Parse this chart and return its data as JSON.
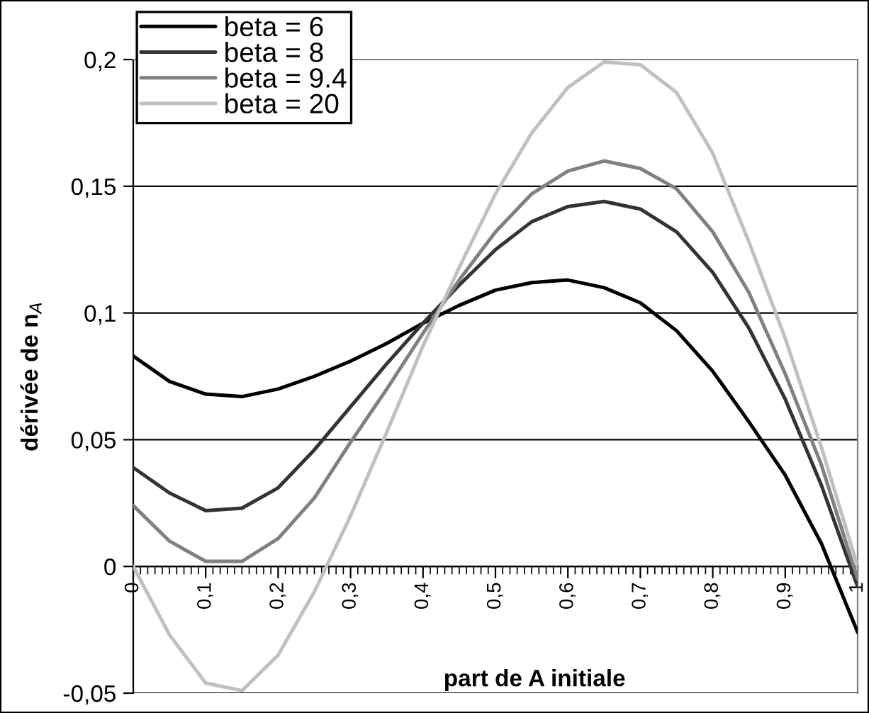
{
  "chart_data": {
    "type": "line",
    "xlabel": "part de A initiale",
    "ylabel": "dérivée de n$_{A}$",
    "x": [
      0,
      0.05,
      0.1,
      0.15,
      0.2,
      0.25,
      0.3,
      0.35,
      0.4,
      0.45,
      0.5,
      0.55,
      0.6,
      0.65,
      0.7,
      0.75,
      0.8,
      0.85,
      0.9,
      0.95,
      1
    ],
    "series": [
      {
        "name": "beta = 6",
        "color": "#000000",
        "values": [
          0.083,
          0.073,
          0.068,
          0.067,
          0.07,
          0.075,
          0.081,
          0.088,
          0.096,
          0.103,
          0.109,
          0.112,
          0.113,
          0.11,
          0.104,
          0.093,
          0.077,
          0.057,
          0.036,
          0.009,
          -0.026
        ]
      },
      {
        "name": "beta = 8",
        "color": "#333333",
        "values": [
          0.039,
          0.029,
          0.022,
          0.023,
          0.031,
          0.046,
          0.063,
          0.08,
          0.096,
          0.111,
          0.125,
          0.136,
          0.142,
          0.144,
          0.141,
          0.132,
          0.116,
          0.094,
          0.066,
          0.032,
          -0.008
        ]
      },
      {
        "name": "beta = 9.4",
        "color": "#808080",
        "values": [
          0.024,
          0.01,
          0.002,
          0.002,
          0.011,
          0.027,
          0.049,
          0.07,
          0.092,
          0.113,
          0.132,
          0.147,
          0.156,
          0.16,
          0.157,
          0.149,
          0.132,
          0.108,
          0.076,
          0.04,
          -0.005
        ]
      },
      {
        "name": "beta = 20",
        "color": "#c0c0c0",
        "values": [
          0.0,
          -0.027,
          -0.046,
          -0.049,
          -0.035,
          -0.01,
          0.02,
          0.053,
          0.087,
          0.118,
          0.147,
          0.171,
          0.189,
          0.199,
          0.198,
          0.187,
          0.163,
          0.128,
          0.09,
          0.047,
          0.0
        ]
      }
    ],
    "xlim": [
      0,
      1
    ],
    "xticks": [
      {
        "value": 0,
        "label": "0"
      },
      {
        "value": 0.1,
        "label": "0,1"
      },
      {
        "value": 0.2,
        "label": "0,2"
      },
      {
        "value": 0.3,
        "label": "0,3"
      },
      {
        "value": 0.4,
        "label": "0,4"
      },
      {
        "value": 0.5,
        "label": "0,5"
      },
      {
        "value": 0.6,
        "label": "0,6"
      },
      {
        "value": 0.7,
        "label": "0,7"
      },
      {
        "value": 0.8,
        "label": "0,8"
      },
      {
        "value": 0.9,
        "label": "0,9"
      },
      {
        "value": 1,
        "label": "1"
      }
    ],
    "ylim": [
      -0.05,
      0.2
    ],
    "yticks": [
      {
        "value": -0.05,
        "label": "-0,05"
      },
      {
        "value": 0,
        "label": "0"
      },
      {
        "value": 0.05,
        "label": "0,05"
      },
      {
        "value": 0.1,
        "label": "0,1"
      },
      {
        "value": 0.15,
        "label": "0,15"
      },
      {
        "value": 0.2,
        "label": "0,2"
      }
    ],
    "grid": "y",
    "legend": "top left",
    "marker": "none",
    "line_style": "solid"
  }
}
